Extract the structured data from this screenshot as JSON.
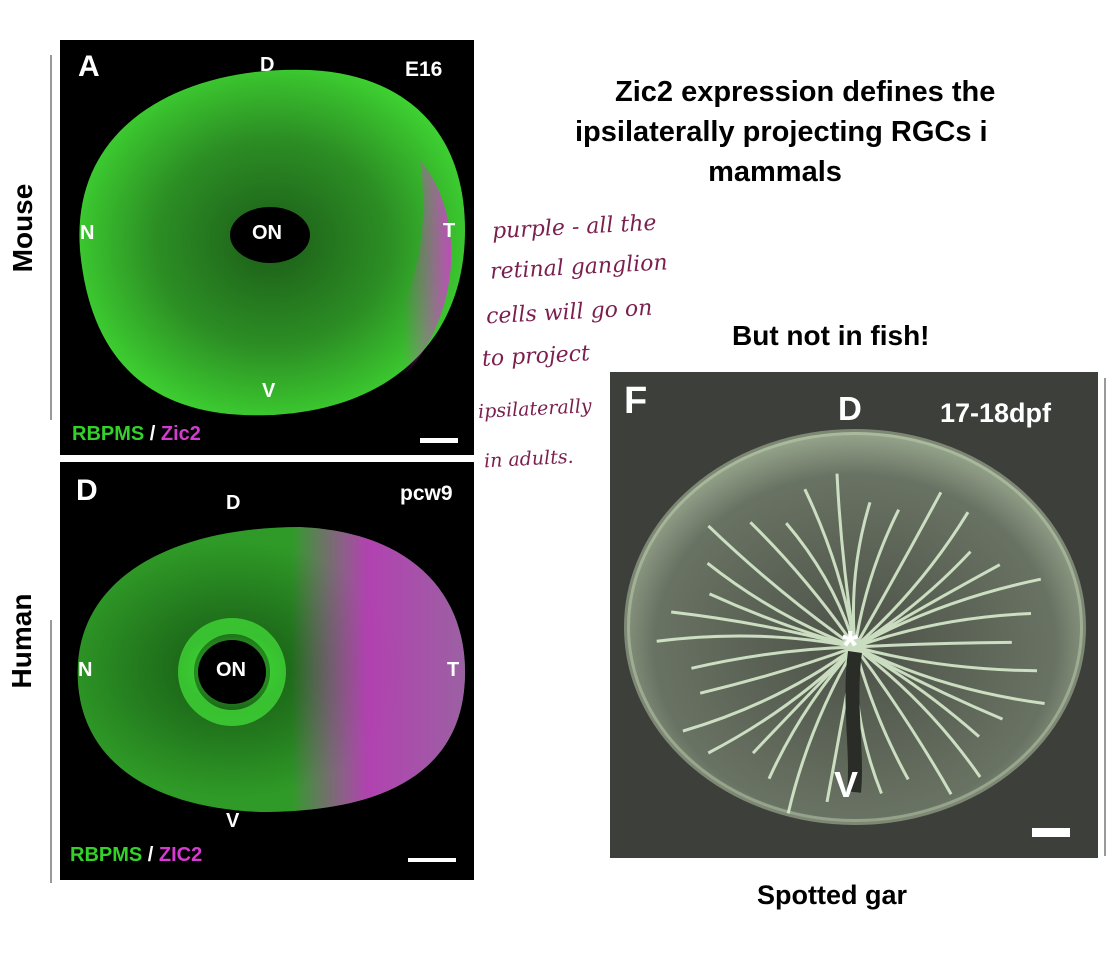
{
  "left": {
    "panel_a": {
      "letter": "A",
      "dorsal": "D",
      "stage": "E16",
      "nasal": "N",
      "optic_nerve": "ON",
      "temporal": "T",
      "ventral": "V",
      "stain_1": "RBPMS",
      "separator": " / ",
      "stain_2": "Zic2"
    },
    "panel_d": {
      "letter": "D",
      "dorsal": "D",
      "stage": "pcw9",
      "nasal": "N",
      "optic_nerve": "ON",
      "temporal": "T",
      "ventral": "V",
      "stain_1": "RBPMS",
      "separator": " / ",
      "stain_2": "ZIC2"
    },
    "species_1": "Mouse",
    "species_2": "Human"
  },
  "title": {
    "line1": "Zic2 expression defines the",
    "line2": "ipsilaterally projecting RGCs i",
    "line3": "mammals"
  },
  "handwritten_note": {
    "lines": [
      "purple - all the",
      "retinal ganglion",
      "cells will go on",
      "to project",
      "ipsilaterally",
      "in adults."
    ]
  },
  "fish": {
    "subtitle": "But not in fish!",
    "panel_f": {
      "letter": "F",
      "dorsal": "D",
      "stage": "17-18dpf",
      "ventral": "V",
      "marker": "*"
    },
    "caption": "Spotted gar"
  },
  "colors": {
    "green": "#35d12b",
    "magenta": "#d43bd0",
    "note_ink": "#7a1f4e",
    "fish_bg": "#3d3f3b",
    "fish_cells": "#d8eccd"
  }
}
